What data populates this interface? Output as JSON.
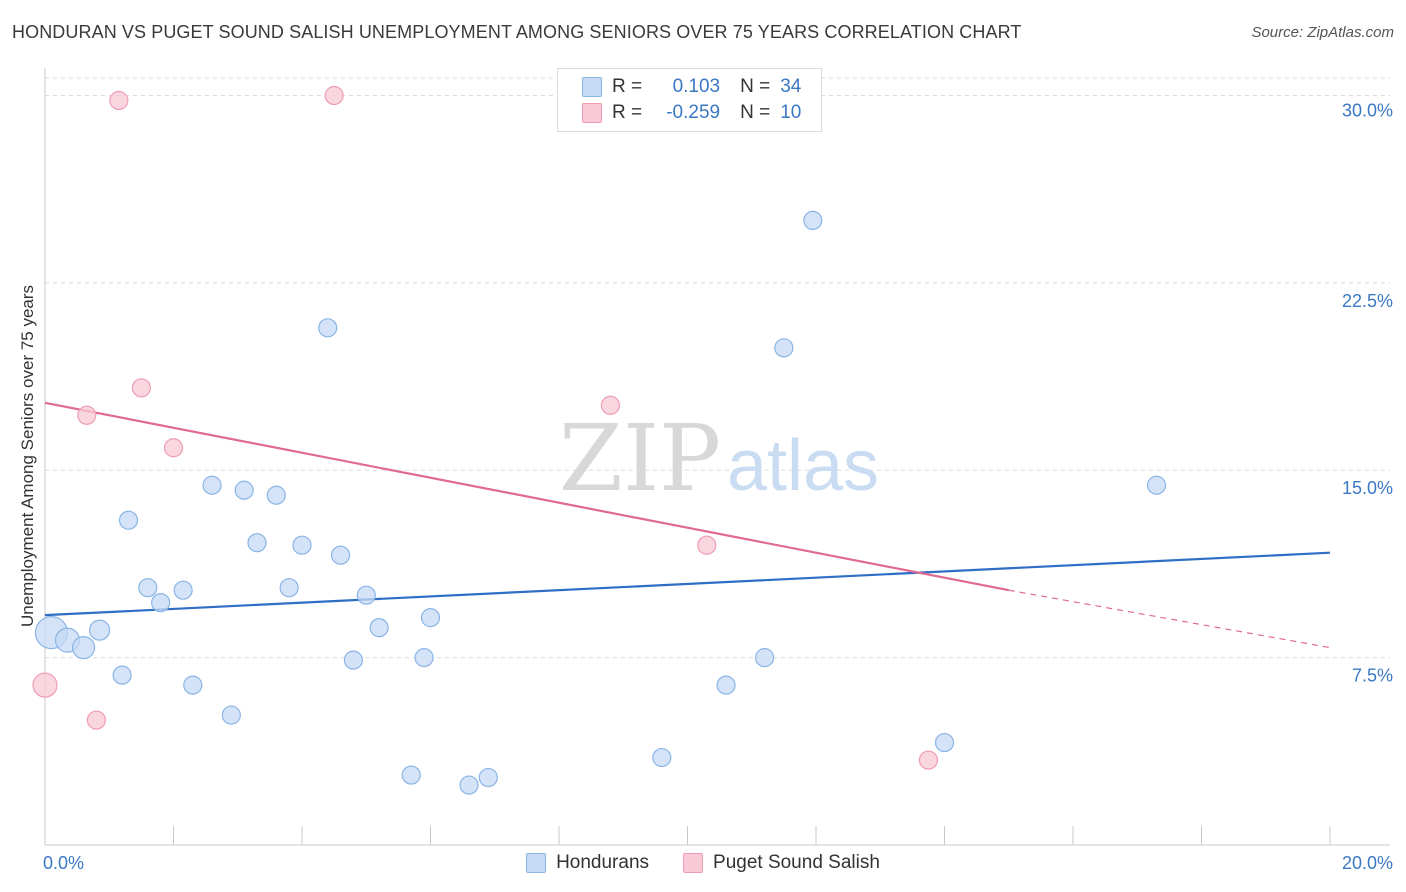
{
  "title": "HONDURAN VS PUGET SOUND SALISH UNEMPLOYMENT AMONG SENIORS OVER 75 YEARS CORRELATION CHART",
  "source": "Source: ZipAtlas.com",
  "watermark": {
    "zip": "ZIP",
    "atlas": "atlas"
  },
  "legend_top": [
    {
      "r_label": "R =",
      "r_value": "0.103",
      "n_label": "N =",
      "n_value": "34"
    },
    {
      "r_label": "R =",
      "r_value": "-0.259",
      "n_label": "N =",
      "n_value": "10"
    }
  ],
  "colors": {
    "blue_fill": "#c5daf4",
    "blue_stroke": "#8ab4e6",
    "blue_line": "#2f6ec6",
    "pink_fill": "#f8c9d6",
    "pink_stroke": "#ee9bb3",
    "pink_line": "#e06a93",
    "tick_text": "#3b78c4",
    "grid": "#dcdcdc"
  },
  "chart_data": {
    "type": "scatter",
    "title": "HONDURAN VS PUGET SOUND SALISH UNEMPLOYMENT AMONG SENIORS OVER 75 YEARS CORRELATION CHART",
    "xlabel": "",
    "ylabel": "Unemployment Among Seniors over 75 years",
    "xlim": [
      0,
      20
    ],
    "ylim": [
      0,
      30.7
    ],
    "x_tick_labels": [
      "0.0%",
      "20.0%"
    ],
    "y_ticks": [
      7.5,
      15.0,
      22.5,
      30.0
    ],
    "y_tick_labels": [
      "7.5%",
      "15.0%",
      "22.5%",
      "30.0%"
    ],
    "grid": "horizontal dashed",
    "legend_position": "bottom",
    "series": [
      {
        "name": "Hondurans",
        "points": [
          [
            0.1,
            8.5,
            16
          ],
          [
            0.35,
            8.2,
            12
          ],
          [
            0.6,
            7.9,
            11
          ],
          [
            0.85,
            8.6,
            10
          ],
          [
            1.3,
            13.0,
            9
          ],
          [
            1.6,
            10.3,
            9
          ],
          [
            1.8,
            9.7,
            9
          ],
          [
            2.15,
            10.2,
            9
          ],
          [
            2.6,
            14.4,
            9
          ],
          [
            3.1,
            14.2,
            9
          ],
          [
            3.6,
            14.0,
            9
          ],
          [
            3.3,
            12.1,
            9
          ],
          [
            4.0,
            12.0,
            9
          ],
          [
            3.8,
            10.3,
            9
          ],
          [
            4.4,
            20.7,
            9
          ],
          [
            4.6,
            11.6,
            9
          ],
          [
            5.0,
            10.0,
            9
          ],
          [
            5.2,
            8.7,
            9
          ],
          [
            4.8,
            7.4,
            9
          ],
          [
            6.0,
            9.1,
            9
          ],
          [
            5.9,
            7.5,
            9
          ],
          [
            1.2,
            6.8,
            9
          ],
          [
            2.3,
            6.4,
            9
          ],
          [
            2.9,
            5.2,
            9
          ],
          [
            5.7,
            2.8,
            9
          ],
          [
            6.6,
            2.4,
            9
          ],
          [
            6.9,
            2.7,
            9
          ],
          [
            9.6,
            3.5,
            9
          ],
          [
            10.6,
            6.4,
            9
          ],
          [
            11.2,
            7.5,
            9
          ],
          [
            11.5,
            19.9,
            9
          ],
          [
            11.95,
            25.0,
            9
          ],
          [
            14.0,
            4.1,
            9
          ],
          [
            17.3,
            14.4,
            9
          ]
        ],
        "trend": {
          "x": [
            0,
            20
          ],
          "y": [
            9.2,
            11.7
          ]
        }
      },
      {
        "name": "Puget Sound Salish",
        "points": [
          [
            0.0,
            6.4,
            12
          ],
          [
            0.65,
            17.2,
            9
          ],
          [
            0.8,
            5.0,
            9
          ],
          [
            1.15,
            29.8,
            9
          ],
          [
            1.5,
            18.3,
            9
          ],
          [
            2.0,
            15.9,
            9
          ],
          [
            4.5,
            30.0,
            9
          ],
          [
            8.8,
            17.6,
            9
          ],
          [
            10.3,
            12.0,
            9
          ],
          [
            13.75,
            3.4,
            9
          ]
        ],
        "trend": {
          "x": [
            0,
            15
          ],
          "y": [
            17.7,
            10.2
          ],
          "dashed_to": {
            "x": 20,
            "y": 7.9
          }
        }
      }
    ]
  }
}
